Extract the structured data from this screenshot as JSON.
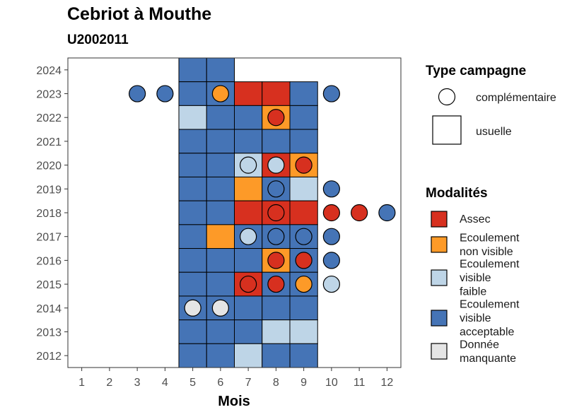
{
  "chart_data": {
    "type": "heatmap",
    "title": "Cebriot à Mouthe",
    "subtitle": "U2002011",
    "xlabel": "Mois",
    "ylabel": "",
    "x_ticks": [
      "1",
      "2",
      "3",
      "4",
      "5",
      "6",
      "7",
      "8",
      "9",
      "10",
      "11",
      "12"
    ],
    "y_ticks": [
      "2012",
      "2013",
      "2014",
      "2015",
      "2016",
      "2017",
      "2018",
      "2019",
      "2020",
      "2021",
      "2022",
      "2023",
      "2024"
    ],
    "xlim": [
      0.5,
      12.5
    ],
    "ylim": [
      2011.5,
      2024.5
    ],
    "grid": false,
    "legend_placement": "right",
    "colors": {
      "Assec": "#d7301f",
      "Ecoulement non visible": "#fd9a28",
      "Ecoulement visible faible": "#bed5e7",
      "Ecoulement visible acceptable": "#4574b6",
      "Donnée manquante": "#e5e5e5"
    },
    "legend_type": {
      "title": "Type campagne",
      "items": [
        {
          "label": "complémentaire",
          "shape": "circle"
        },
        {
          "label": "usuelle",
          "shape": "square"
        }
      ]
    },
    "legend_modalites": {
      "title": "Modalités",
      "items": [
        {
          "key": "Assec",
          "lines": [
            "Assec"
          ]
        },
        {
          "key": "Ecoulement non visible",
          "lines": [
            "Ecoulement",
            "non visible"
          ]
        },
        {
          "key": "Ecoulement visible faible",
          "lines": [
            "Ecoulement",
            "visible",
            "faible"
          ]
        },
        {
          "key": "Ecoulement visible acceptable",
          "lines": [
            "Ecoulement",
            "visible",
            "acceptable"
          ]
        },
        {
          "key": "Donnée manquante",
          "lines": [
            "Donnée",
            "manquante"
          ]
        }
      ]
    },
    "usuelle": [
      {
        "year": 2024,
        "month": 5,
        "value": "Ecoulement visible acceptable"
      },
      {
        "year": 2024,
        "month": 6,
        "value": "Ecoulement visible acceptable"
      },
      {
        "year": 2023,
        "month": 5,
        "value": "Ecoulement visible acceptable"
      },
      {
        "year": 2023,
        "month": 6,
        "value": "Ecoulement visible acceptable"
      },
      {
        "year": 2023,
        "month": 7,
        "value": "Assec"
      },
      {
        "year": 2023,
        "month": 8,
        "value": "Assec"
      },
      {
        "year": 2023,
        "month": 9,
        "value": "Ecoulement visible acceptable"
      },
      {
        "year": 2022,
        "month": 5,
        "value": "Ecoulement visible faible"
      },
      {
        "year": 2022,
        "month": 6,
        "value": "Ecoulement visible acceptable"
      },
      {
        "year": 2022,
        "month": 7,
        "value": "Ecoulement visible acceptable"
      },
      {
        "year": 2022,
        "month": 8,
        "value": "Ecoulement non visible"
      },
      {
        "year": 2022,
        "month": 9,
        "value": "Ecoulement visible acceptable"
      },
      {
        "year": 2021,
        "month": 5,
        "value": "Ecoulement visible acceptable"
      },
      {
        "year": 2021,
        "month": 6,
        "value": "Ecoulement visible acceptable"
      },
      {
        "year": 2021,
        "month": 7,
        "value": "Ecoulement visible acceptable"
      },
      {
        "year": 2021,
        "month": 8,
        "value": "Ecoulement visible acceptable"
      },
      {
        "year": 2021,
        "month": 9,
        "value": "Ecoulement visible acceptable"
      },
      {
        "year": 2020,
        "month": 5,
        "value": "Ecoulement visible acceptable"
      },
      {
        "year": 2020,
        "month": 6,
        "value": "Ecoulement visible acceptable"
      },
      {
        "year": 2020,
        "month": 7,
        "value": "Ecoulement visible faible"
      },
      {
        "year": 2020,
        "month": 8,
        "value": "Assec"
      },
      {
        "year": 2020,
        "month": 9,
        "value": "Ecoulement non visible"
      },
      {
        "year": 2019,
        "month": 5,
        "value": "Ecoulement visible acceptable"
      },
      {
        "year": 2019,
        "month": 6,
        "value": "Ecoulement visible acceptable"
      },
      {
        "year": 2019,
        "month": 7,
        "value": "Ecoulement non visible"
      },
      {
        "year": 2019,
        "month": 8,
        "value": "Ecoulement visible acceptable"
      },
      {
        "year": 2019,
        "month": 9,
        "value": "Ecoulement visible faible"
      },
      {
        "year": 2018,
        "month": 5,
        "value": "Ecoulement visible acceptable"
      },
      {
        "year": 2018,
        "month": 6,
        "value": "Ecoulement visible acceptable"
      },
      {
        "year": 2018,
        "month": 7,
        "value": "Assec"
      },
      {
        "year": 2018,
        "month": 8,
        "value": "Assec"
      },
      {
        "year": 2018,
        "month": 9,
        "value": "Assec"
      },
      {
        "year": 2017,
        "month": 5,
        "value": "Ecoulement visible acceptable"
      },
      {
        "year": 2017,
        "month": 6,
        "value": "Ecoulement non visible"
      },
      {
        "year": 2017,
        "month": 7,
        "value": "Ecoulement visible acceptable"
      },
      {
        "year": 2017,
        "month": 8,
        "value": "Ecoulement visible acceptable"
      },
      {
        "year": 2017,
        "month": 9,
        "value": "Ecoulement visible acceptable"
      },
      {
        "year": 2016,
        "month": 5,
        "value": "Ecoulement visible acceptable"
      },
      {
        "year": 2016,
        "month": 6,
        "value": "Ecoulement visible acceptable"
      },
      {
        "year": 2016,
        "month": 7,
        "value": "Ecoulement visible acceptable"
      },
      {
        "year": 2016,
        "month": 8,
        "value": "Ecoulement non visible"
      },
      {
        "year": 2016,
        "month": 9,
        "value": "Ecoulement visible acceptable"
      },
      {
        "year": 2015,
        "month": 5,
        "value": "Ecoulement visible acceptable"
      },
      {
        "year": 2015,
        "month": 6,
        "value": "Ecoulement visible acceptable"
      },
      {
        "year": 2015,
        "month": 7,
        "value": "Assec"
      },
      {
        "year": 2015,
        "month": 8,
        "value": "Ecoulement visible acceptable"
      },
      {
        "year": 2015,
        "month": 9,
        "value": "Ecoulement visible acceptable"
      },
      {
        "year": 2014,
        "month": 5,
        "value": "Ecoulement visible acceptable"
      },
      {
        "year": 2014,
        "month": 6,
        "value": "Ecoulement visible acceptable"
      },
      {
        "year": 2014,
        "month": 7,
        "value": "Ecoulement visible acceptable"
      },
      {
        "year": 2014,
        "month": 8,
        "value": "Ecoulement visible acceptable"
      },
      {
        "year": 2014,
        "month": 9,
        "value": "Ecoulement visible acceptable"
      },
      {
        "year": 2013,
        "month": 5,
        "value": "Ecoulement visible acceptable"
      },
      {
        "year": 2013,
        "month": 6,
        "value": "Ecoulement visible acceptable"
      },
      {
        "year": 2013,
        "month": 7,
        "value": "Ecoulement visible acceptable"
      },
      {
        "year": 2013,
        "month": 8,
        "value": "Ecoulement visible faible"
      },
      {
        "year": 2013,
        "month": 9,
        "value": "Ecoulement visible faible"
      },
      {
        "year": 2012,
        "month": 5,
        "value": "Ecoulement visible acceptable"
      },
      {
        "year": 2012,
        "month": 6,
        "value": "Ecoulement visible acceptable"
      },
      {
        "year": 2012,
        "month": 7,
        "value": "Ecoulement visible faible"
      },
      {
        "year": 2012,
        "month": 8,
        "value": "Ecoulement visible acceptable"
      },
      {
        "year": 2012,
        "month": 9,
        "value": "Ecoulement visible acceptable"
      }
    ],
    "complementaire": [
      {
        "year": 2023,
        "month": 3,
        "value": "Ecoulement visible acceptable"
      },
      {
        "year": 2023,
        "month": 4,
        "value": "Ecoulement visible acceptable"
      },
      {
        "year": 2023,
        "month": 6,
        "value": "Ecoulement non visible"
      },
      {
        "year": 2023,
        "month": 10,
        "value": "Ecoulement visible acceptable"
      },
      {
        "year": 2022,
        "month": 8,
        "value": "Assec"
      },
      {
        "year": 2020,
        "month": 7,
        "value": "Ecoulement visible faible"
      },
      {
        "year": 2020,
        "month": 8,
        "value": "Ecoulement visible faible"
      },
      {
        "year": 2020,
        "month": 9,
        "value": "Assec"
      },
      {
        "year": 2019,
        "month": 8,
        "value": "Ecoulement visible acceptable"
      },
      {
        "year": 2019,
        "month": 10,
        "value": "Ecoulement visible acceptable"
      },
      {
        "year": 2018,
        "month": 8,
        "value": "Assec"
      },
      {
        "year": 2018,
        "month": 10,
        "value": "Assec"
      },
      {
        "year": 2018,
        "month": 11,
        "value": "Assec"
      },
      {
        "year": 2018,
        "month": 12,
        "value": "Ecoulement visible acceptable"
      },
      {
        "year": 2017,
        "month": 7,
        "value": "Ecoulement visible faible"
      },
      {
        "year": 2017,
        "month": 8,
        "value": "Ecoulement visible acceptable"
      },
      {
        "year": 2017,
        "month": 9,
        "value": "Ecoulement visible acceptable"
      },
      {
        "year": 2017,
        "month": 10,
        "value": "Ecoulement visible acceptable"
      },
      {
        "year": 2016,
        "month": 8,
        "value": "Assec"
      },
      {
        "year": 2016,
        "month": 9,
        "value": "Assec"
      },
      {
        "year": 2016,
        "month": 10,
        "value": "Ecoulement visible acceptable"
      },
      {
        "year": 2015,
        "month": 7,
        "value": "Assec"
      },
      {
        "year": 2015,
        "month": 8,
        "value": "Assec"
      },
      {
        "year": 2015,
        "month": 9,
        "value": "Ecoulement non visible"
      },
      {
        "year": 2015,
        "month": 10,
        "value": "Ecoulement visible faible"
      },
      {
        "year": 2014,
        "month": 5,
        "value": "Donnée manquante"
      },
      {
        "year": 2014,
        "month": 6,
        "value": "Donnée manquante"
      }
    ]
  }
}
